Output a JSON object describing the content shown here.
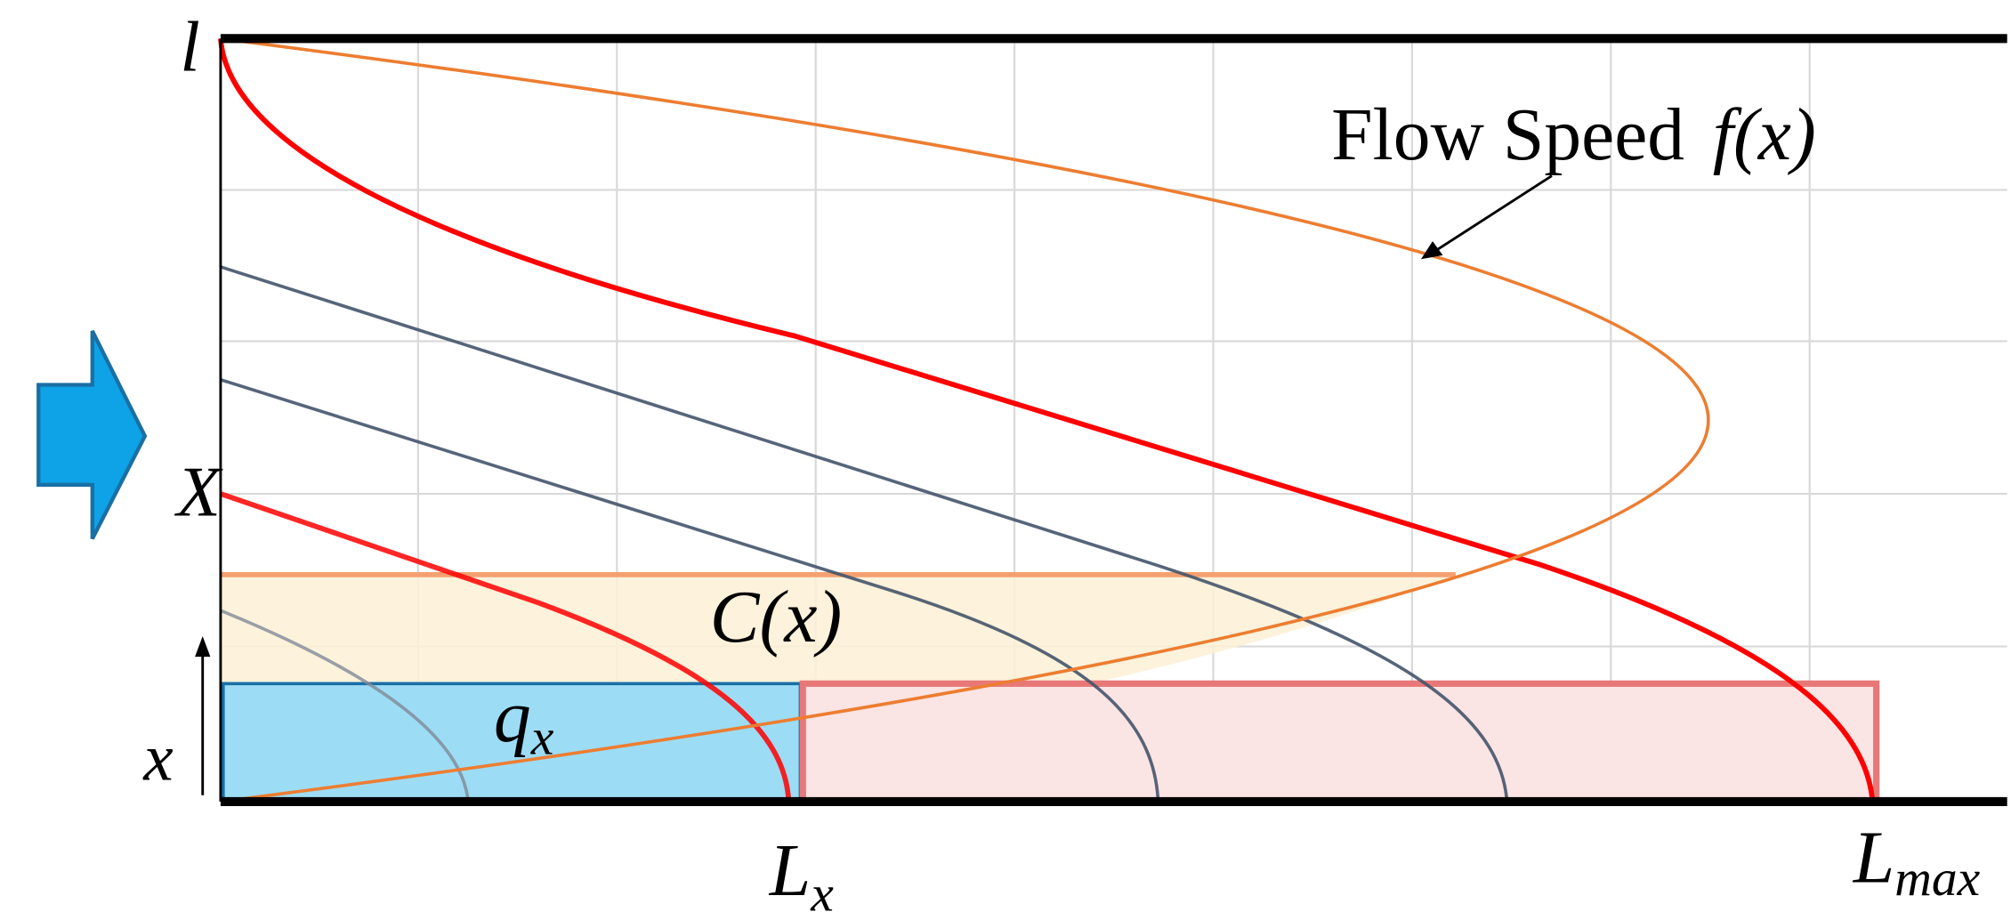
{
  "axis_labels": {
    "top": "l",
    "middle": "X",
    "position": "x"
  },
  "bottom_labels": [
    {
      "base": "L",
      "sub": "x"
    },
    {
      "base": "L",
      "sub": "max"
    }
  ],
  "annotations": {
    "flow_speed": {
      "text": "Flow Speed",
      "function": "f(x)"
    },
    "capacity": "C(x)",
    "flow": {
      "base": "q",
      "sub": "x"
    }
  }
}
